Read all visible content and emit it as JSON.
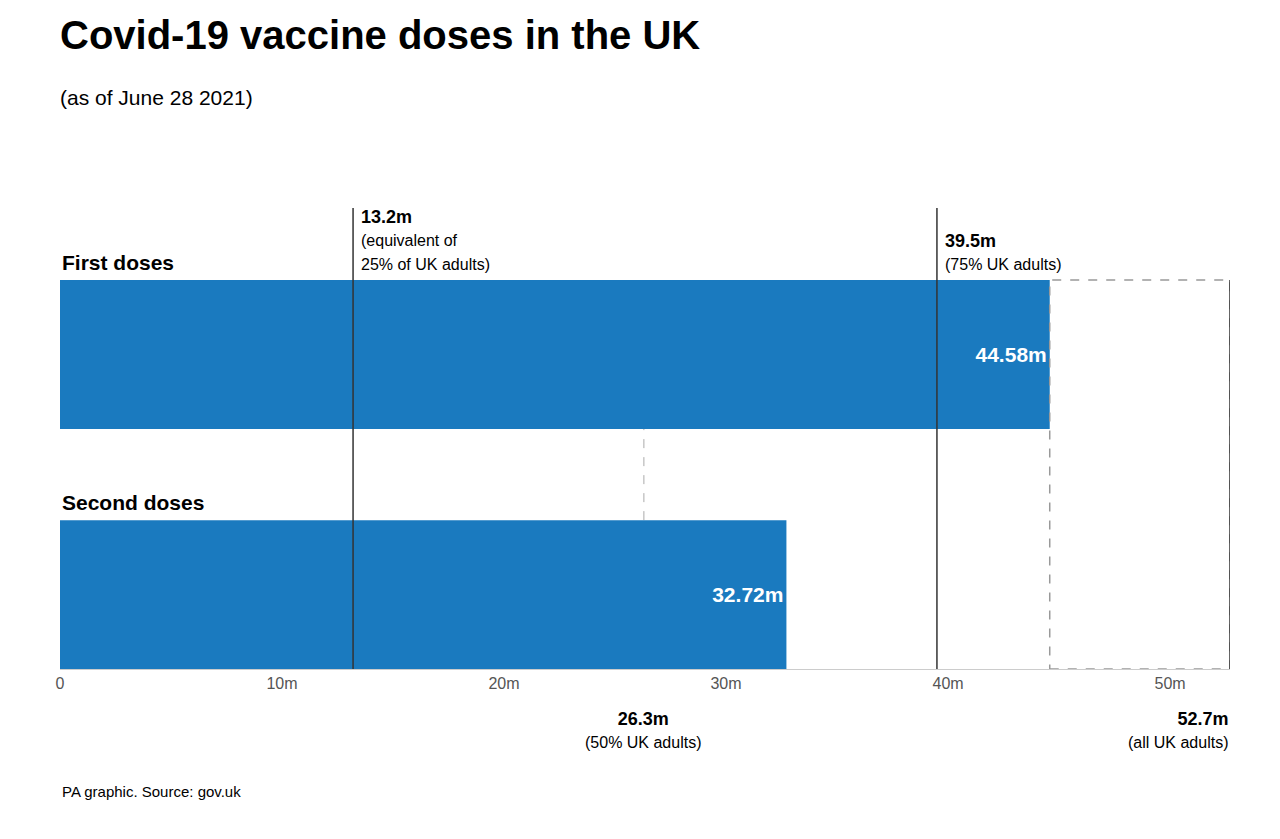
{
  "chart_data": {
    "type": "bar",
    "orientation": "horizontal",
    "title": "Covid-19 vaccine doses in the UK",
    "subtitle": "(as of June 28 2021)",
    "footer": "PA graphic. Source: gov.uk",
    "categories": [
      "First doses",
      "Second doses"
    ],
    "values": [
      44.58,
      32.72
    ],
    "value_labels": [
      "44.58m",
      "32.72m"
    ],
    "data_labels": true,
    "color": "#1a7abf",
    "xlim": [
      0,
      52.7
    ],
    "xticks": [
      0,
      {
        "value": 10,
        "label": "10m"
      },
      {
        "value": 20,
        "label": "20m"
      },
      {
        "value": 30,
        "label": "30m"
      },
      {
        "value": 40,
        "label": "40m"
      },
      {
        "value": 50,
        "label": "50m"
      }
    ],
    "grid": false,
    "tick_labels": "x",
    "reference_lines": [
      {
        "value": 13.2,
        "label": "13.2m",
        "note": [
          "(equivalent of",
          "25% of UK adults)"
        ],
        "line_style": "solid"
      },
      {
        "value": 26.3,
        "label": "26.3m",
        "note": [
          "(50% UK adults)"
        ],
        "line_style": "dashed"
      },
      {
        "value": 39.5,
        "label": "39.5m",
        "note": [
          "(75% UK adults)"
        ],
        "line_style": "solid"
      },
      {
        "value": 52.7,
        "label": "52.7m",
        "note": [
          "(all UK adults)"
        ],
        "line_style": "solid"
      }
    ],
    "highlight_range": [
      44.58,
      52.7
    ]
  }
}
